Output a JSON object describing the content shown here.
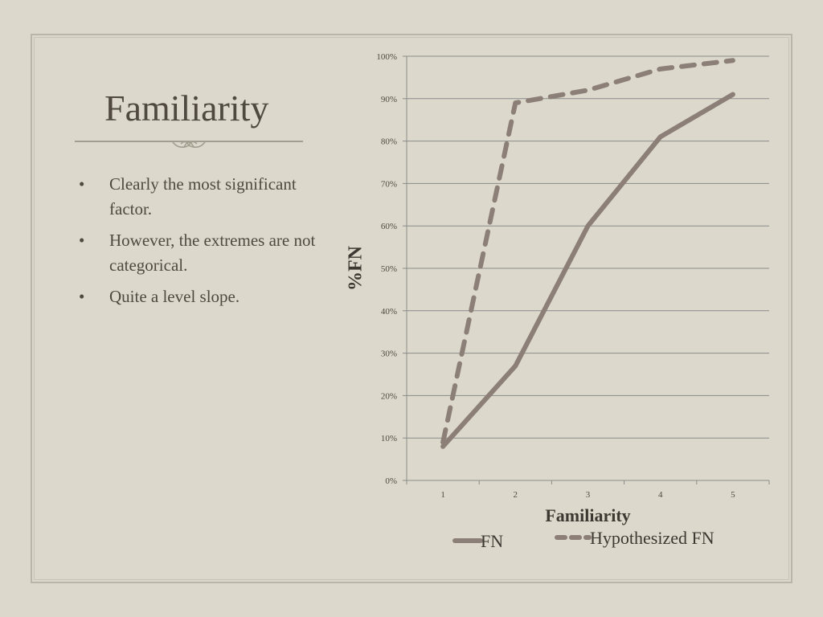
{
  "slide": {
    "title": "Familiarity",
    "bullets": [
      "Clearly the most significant factor.",
      "However, the extremes are not categorical.",
      "Quite a level slope."
    ],
    "bullet_glyph": "•"
  },
  "colors": {
    "background": "#dcd9cc",
    "text": "#4f4940",
    "series": "#8c7f78",
    "gridline": "#8a8a8a"
  },
  "chart_data": {
    "type": "line",
    "x": [
      1,
      2,
      3,
      4,
      5
    ],
    "xlabel": "Familiarity",
    "ylabel": "%FN",
    "ylim": [
      0,
      100
    ],
    "yticks": [
      "0%",
      "10%",
      "20%",
      "30%",
      "40%",
      "50%",
      "60%",
      "70%",
      "80%",
      "90%",
      "100%"
    ],
    "xticks": [
      "1",
      "2",
      "3",
      "4",
      "5"
    ],
    "grid": true,
    "legend_position": "bottom",
    "series": [
      {
        "name": "FN",
        "values": [
          8,
          27,
          60,
          81,
          91
        ],
        "style": "solid"
      },
      {
        "name": "Hypothesized FN",
        "values": [
          9,
          89,
          92,
          97,
          99
        ],
        "style": "dashed"
      }
    ]
  }
}
